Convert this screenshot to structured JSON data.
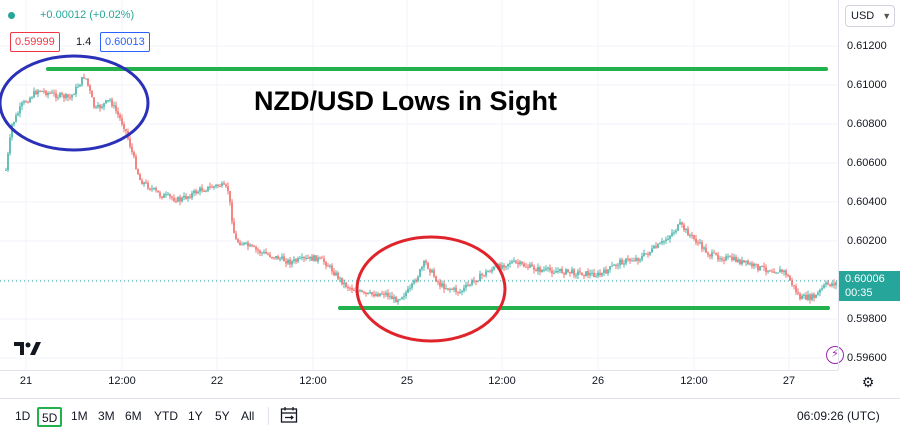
{
  "header": {
    "change": "+0.00012 (+0.02%)",
    "bid": "0.59999",
    "spread": "1.4",
    "ask": "0.60013"
  },
  "annotation": {
    "title": "NZD/USD Lows in Sight"
  },
  "price_scale": {
    "currency": "USD",
    "ticks": [
      "0.61200",
      "0.61000",
      "0.60800",
      "0.60600",
      "0.60400",
      "0.60200",
      "0.59800",
      "0.59600"
    ],
    "last_price": "0.60006",
    "countdown": "00:35"
  },
  "time_axis": {
    "labels": [
      "21",
      "12:00",
      "22",
      "12:00",
      "25",
      "12:00",
      "26",
      "12:00",
      "27"
    ]
  },
  "bottom_bar": {
    "ranges": [
      "1D",
      "5D",
      "1M",
      "3M",
      "6M",
      "YTD",
      "1Y",
      "5Y",
      "All"
    ],
    "active_range": "5D",
    "clock": "06:09:26 (UTC)"
  },
  "colors": {
    "up": "#26a69a",
    "down": "#ef5350",
    "resistance_line": "#22b14c",
    "support_line": "#22b14c",
    "circle_high": "#2b30b8",
    "circle_low": "#e0242c"
  },
  "icons": {
    "status": "status-dot-icon",
    "currency_dropdown": "chevron-down-icon",
    "logo": "tradingview-logo-icon",
    "alert": "lightning-icon",
    "axis_settings": "gear-icon",
    "date_range": "calendar-range-icon"
  }
}
